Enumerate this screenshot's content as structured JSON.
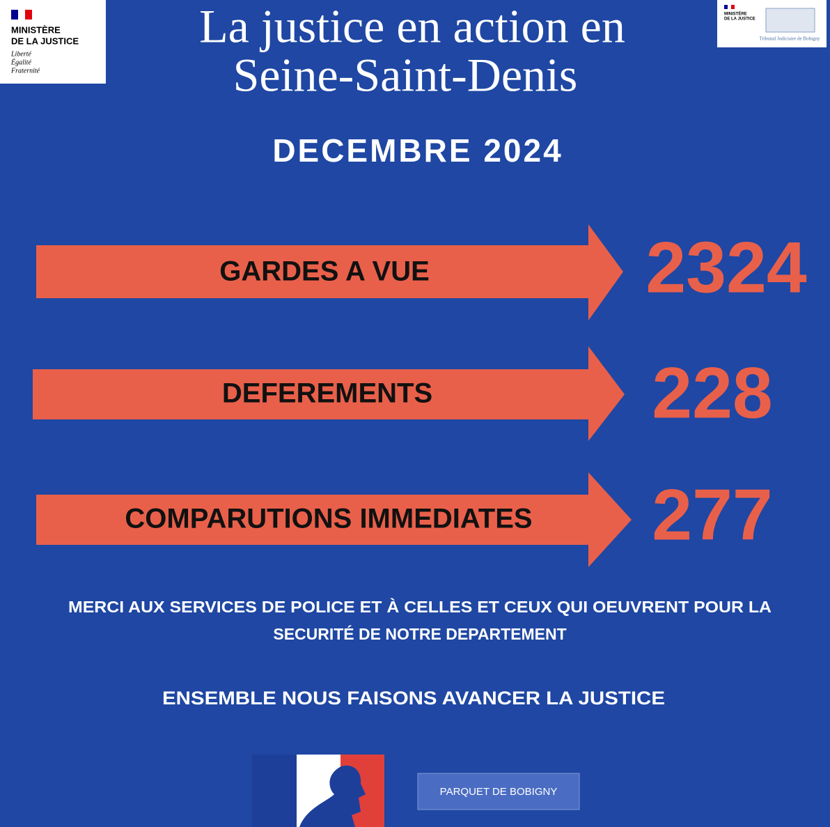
{
  "header": {
    "logo_left": {
      "lines": [
        "MINISTÈRE",
        "DE LA JUSTICE"
      ],
      "motto": [
        "Liberté",
        "Égalité",
        "Fraternité"
      ]
    },
    "logo_right": {
      "lines": [
        "MINISTÈRE",
        "DE LA JUSTICE"
      ],
      "court": "Tribunal Judiciaire de Bobigny"
    },
    "title": [
      "La justice en action en",
      "Seine-Saint-Denis"
    ],
    "period": "DECEMBRE 2024"
  },
  "stats": [
    {
      "label": "GARDES A VUE",
      "value": 2324
    },
    {
      "label": "DEFEREMENTS",
      "value": 228
    },
    {
      "label": "COMPARUTIONS IMMEDIATES",
      "value": 277
    }
  ],
  "message": [
    "MERCI AUX SERVICES DE POLICE ET À CELLES ET CEUX QUI OEUVRENT POUR LA",
    "SECURITÉ DE NOTRE DEPARTEMENT"
  ],
  "slogan": "ENSEMBLE NOUS FAISONS AVANCER LA JUSTICE",
  "footer": {
    "button": "PARQUET DE BOBIGNY"
  }
}
